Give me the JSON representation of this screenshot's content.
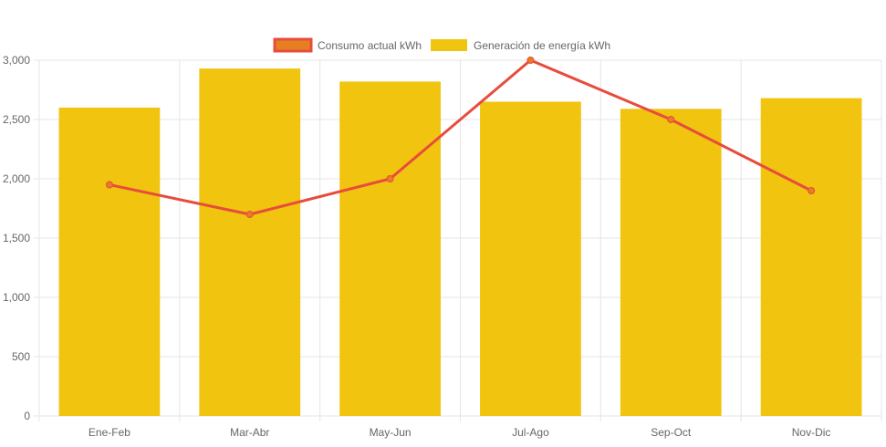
{
  "colors": {
    "bar_fill": "#F1C40F",
    "line_stroke": "#E74C3C",
    "line_legend_fill": "#E67E22",
    "grid": "#e5e5e5",
    "tick_text": "#666666"
  },
  "chart_data": {
    "type": "bar",
    "categories": [
      "Ene-Feb",
      "Mar-Abr",
      "May-Jun",
      "Jul-Ago",
      "Sep-Oct",
      "Nov-Dic"
    ],
    "series": [
      {
        "name": "Consumo actual kWh",
        "type": "line",
        "values": [
          1950,
          1700,
          2000,
          3000,
          2500,
          1900
        ]
      },
      {
        "name": "Generación de energía kWh",
        "type": "bar",
        "values": [
          2600,
          2930,
          2820,
          2650,
          2590,
          2680
        ]
      }
    ],
    "ylim": [
      0,
      3000
    ],
    "yticks": [
      0,
      500,
      1000,
      1500,
      2000,
      2500,
      3000
    ],
    "ytick_labels": [
      "0",
      "500",
      "1,000",
      "1,500",
      "2,000",
      "2,500",
      "3,000"
    ],
    "grid": true,
    "legend_position": "top-center"
  }
}
